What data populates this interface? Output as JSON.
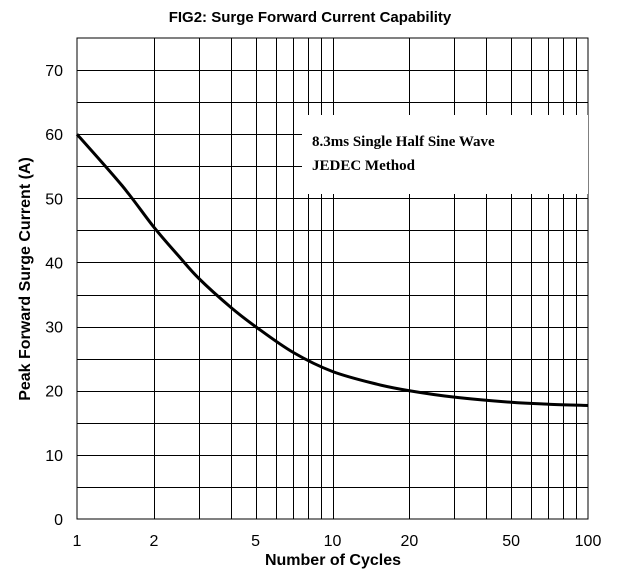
{
  "chart_data": {
    "type": "line",
    "title": "FIG2: Surge Forward Current Capability",
    "xlabel": "Number of Cycles",
    "ylabel": "Peak Forward Surge Current (A)",
    "xscale": "log",
    "xlim": [
      1,
      100
    ],
    "ylim": [
      0,
      75
    ],
    "x_ticks": [
      1,
      2,
      5,
      10,
      20,
      50,
      100
    ],
    "y_ticks": [
      0,
      10,
      20,
      30,
      40,
      50,
      60,
      70
    ],
    "grid": true,
    "annotation": [
      "8.3ms Single Half Sine Wave",
      "JEDEC Method"
    ],
    "series": [
      {
        "x": [
          1,
          1.5,
          2,
          2.5,
          3,
          4,
          5,
          7,
          10,
          15,
          20,
          30,
          50,
          70,
          100
        ],
        "values": [
          60,
          52,
          45.5,
          41,
          37.5,
          33,
          30,
          26,
          23,
          21,
          20,
          19,
          18.2,
          17.9,
          17.7
        ]
      }
    ]
  }
}
